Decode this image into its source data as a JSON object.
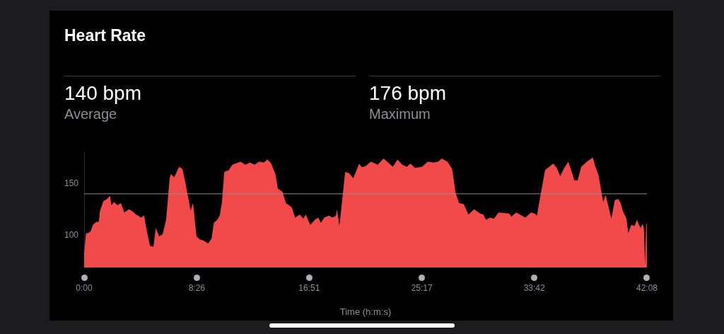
{
  "chart_data": {
    "type": "area",
    "title": "Heart Rate",
    "xlabel": "Time (h:m:s)",
    "annotations": [
      "140 bpm",
      "Average",
      "176 bpm",
      "Maximum"
    ],
    "x": [
      0,
      0.14,
      0.31,
      0.49,
      0.66,
      0.92,
      1.1,
      1.18,
      1.44,
      1.71,
      1.93,
      2.05,
      2.23,
      2.49,
      2.75,
      3.01,
      3.36,
      3.62,
      3.88,
      4.06,
      4.23,
      4.49,
      4.66,
      4.93,
      5.19,
      5.36,
      5.62,
      5.88,
      6.14,
      6.4,
      6.49,
      6.75,
      7.1,
      7.36,
      7.62,
      7.97,
      8.15,
      8.41,
      8.67,
      8.93,
      9.28,
      9.54,
      9.71,
      9.97,
      10.15,
      10.32,
      10.49,
      10.84,
      11.1,
      11.71,
      12.06,
      12.41,
      12.76,
      13.1,
      13.45,
      13.71,
      13.97,
      14.32,
      14.5,
      14.84,
      15.11,
      15.54,
      15.8,
      16.15,
      16.41,
      16.59,
      16.93,
      17.28,
      17.54,
      17.72,
      17.98,
      18.33,
      18.59,
      18.85,
      18.93,
      19.11,
      19.28,
      19.54,
      19.81,
      20.15,
      20.59,
      20.76,
      20.94,
      21.11,
      21.46,
      21.98,
      22.42,
      22.76,
      23.11,
      23.46,
      23.81,
      24.16,
      24.42,
      24.77,
      25.29,
      25.72,
      26.16,
      26.51,
      26.77,
      27.2,
      27.55,
      27.81,
      28.07,
      28.42,
      28.77,
      29.2,
      29.64,
      29.9,
      30.07,
      30.42,
      30.68,
      31.03,
      31.81,
      31.99,
      32.34,
      32.77,
      33.03,
      33.47,
      33.73,
      33.9,
      34.16,
      34.51,
      35.12,
      35.38,
      35.64,
      35.9,
      36.25,
      36.51,
      36.69,
      36.95,
      37.21,
      37.64,
      38.08,
      38.25,
      38.51,
      38.86,
      39.04,
      39.21,
      39.47,
      39.73,
      39.99,
      40.17,
      40.34,
      40.6,
      40.74,
      40.95,
      41.21,
      41.38,
      41.65,
      41.82,
      41.91,
      41.99,
      42.08,
      42.13
    ],
    "series": [
      {
        "color": "#f24a4a",
        "values": [
          83,
          102,
          102,
          104,
          110,
          113,
          113,
          123,
          133,
          135,
          138,
          129,
          132,
          129,
          131,
          122,
          125,
          123,
          120,
          119,
          117,
          119,
          106,
          90,
          89,
          107,
          99,
          101,
          115,
          155,
          159,
          156,
          166,
          164,
          148,
          124,
          131,
          99,
          96,
          95,
          92,
          97,
          112,
          115,
          119,
          132,
          161,
          163,
          168,
          171,
          168,
          170,
          168,
          171,
          170,
          173,
          170,
          159,
          145,
          142,
          131,
          127,
          117,
          120,
          116,
          120,
          110,
          115,
          117,
          112,
          117,
          119,
          117,
          119,
          125,
          109,
          129,
          161,
          160,
          155,
          169,
          166,
          166,
          167,
          171,
          168,
          174,
          170,
          166,
          173,
          168,
          166,
          169,
          165,
          166,
          171,
          170,
          171,
          174,
          171,
          164,
          141,
          131,
          130,
          120,
          125,
          121,
          120,
          115,
          117,
          116,
          122,
          121,
          118,
          122,
          119,
          117,
          122,
          121,
          119,
          138,
          163,
          169,
          165,
          157,
          164,
          171,
          161,
          153,
          153,
          166,
          171,
          175,
          167,
          158,
          132,
          139,
          130,
          116,
          134,
          135,
          131,
          123,
          116,
          102,
          110,
          109,
          115,
          107,
          111,
          106,
          72,
          111,
          112
        ]
      }
    ],
    "xlim": [
      0,
      42.133
    ],
    "xticks": [
      {
        "value": 0,
        "label": "0:00"
      },
      {
        "value": 8.433,
        "label": "8:26"
      },
      {
        "value": 16.85,
        "label": "16:51"
      },
      {
        "value": 25.283,
        "label": "25:17"
      },
      {
        "value": 33.7,
        "label": "33:42"
      },
      {
        "value": 42.133,
        "label": "42:08"
      }
    ],
    "ylim": [
      69,
      180
    ],
    "yticks": [
      100,
      150
    ],
    "ref_lines": [
      {
        "axis": "y",
        "value": 140,
        "color": "#8e8e93"
      }
    ],
    "grid": false,
    "legend": false
  }
}
